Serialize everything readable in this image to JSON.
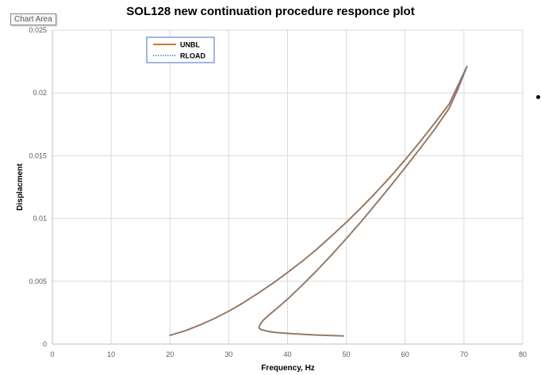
{
  "chart_area_label": "Chart Area",
  "colors": {
    "UNBL": "#c8772f",
    "RLOAD": "#4a7fc1",
    "gridline": "#d9d9d9",
    "legend_border": "#4472c4"
  },
  "chart_data": {
    "type": "line",
    "title": "SOL128 new continuation procedure responce plot",
    "xlabel": "Frequency, Hz",
    "ylabel": "Displacment",
    "xlim": [
      0,
      80
    ],
    "ylim": [
      0,
      0.025
    ],
    "x_ticks": [
      0,
      10,
      20,
      30,
      40,
      50,
      60,
      70,
      80
    ],
    "y_ticks": [
      0,
      0.005,
      0.01,
      0.015,
      0.02,
      0.025
    ],
    "x_tick_labels": [
      "0",
      "10",
      "20",
      "30",
      "40",
      "50",
      "60",
      "70",
      "80"
    ],
    "y_tick_labels": [
      "0",
      "0.005",
      "0.01",
      "0.015",
      "0.02",
      "0.025"
    ],
    "grid": true,
    "legend_position": "top-left",
    "legend": [
      "UNBL",
      "RLOAD"
    ],
    "series": [
      {
        "name": "UNBL",
        "style": "solid",
        "x": [
          20,
          22.5,
          25,
          27.5,
          30,
          32.5,
          35,
          37.5,
          40,
          42.5,
          45,
          47.5,
          50,
          52.5,
          55,
          57.5,
          60,
          62.5,
          65,
          67.5,
          70.5,
          69,
          67.5,
          65,
          62.5,
          60,
          57.5,
          55,
          52.5,
          50,
          47.5,
          45,
          42.5,
          40,
          38.5,
          37,
          35.8,
          35.2,
          35.2,
          35.6,
          36.5,
          38,
          40,
          42.5,
          45,
          47.5,
          49.5
        ],
        "y": [
          0.0007,
          0.00105,
          0.0015,
          0.00202,
          0.00262,
          0.0033,
          0.00405,
          0.00484,
          0.0057,
          0.0066,
          0.00757,
          0.00862,
          0.0097,
          0.01085,
          0.01206,
          0.01333,
          0.01468,
          0.0161,
          0.01758,
          0.01912,
          0.0221,
          0.02034,
          0.01878,
          0.01709,
          0.01555,
          0.01405,
          0.01258,
          0.01115,
          0.00975,
          0.0084,
          0.00711,
          0.00587,
          0.00469,
          0.00358,
          0.00297,
          0.00238,
          0.00188,
          0.00145,
          0.00125,
          0.00114,
          0.00103,
          0.00092,
          0.00085,
          0.00078,
          0.00072,
          0.00068,
          0.00065
        ]
      },
      {
        "name": "RLOAD",
        "style": "dotted",
        "x": [
          20,
          22.5,
          25,
          27.5,
          30,
          32.5,
          35,
          37.5,
          40,
          42.5,
          45,
          47.5,
          50,
          52.5,
          55,
          57.5,
          60,
          62.5,
          65,
          67.5,
          70.5,
          69,
          67.5,
          65,
          62.5,
          60,
          57.5,
          55,
          52.5,
          50,
          47.5,
          45,
          42.5,
          40,
          38.5,
          37,
          35.8,
          35.2,
          35.2,
          35.6,
          36.5,
          38,
          40,
          42.5,
          45,
          47.5,
          49.5
        ],
        "y": [
          0.0007,
          0.00105,
          0.0015,
          0.00202,
          0.00262,
          0.0033,
          0.00405,
          0.00484,
          0.0057,
          0.0066,
          0.00757,
          0.00862,
          0.0097,
          0.01085,
          0.01206,
          0.01333,
          0.01468,
          0.0161,
          0.01758,
          0.01912,
          0.0221,
          0.02034,
          0.01878,
          0.01709,
          0.01555,
          0.01405,
          0.01258,
          0.01115,
          0.00975,
          0.0084,
          0.00711,
          0.00587,
          0.00469,
          0.00358,
          0.00297,
          0.00238,
          0.00188,
          0.00145,
          0.00125,
          0.00114,
          0.00103,
          0.00092,
          0.00085,
          0.00078,
          0.00072,
          0.00068,
          0.00065
        ]
      }
    ]
  }
}
